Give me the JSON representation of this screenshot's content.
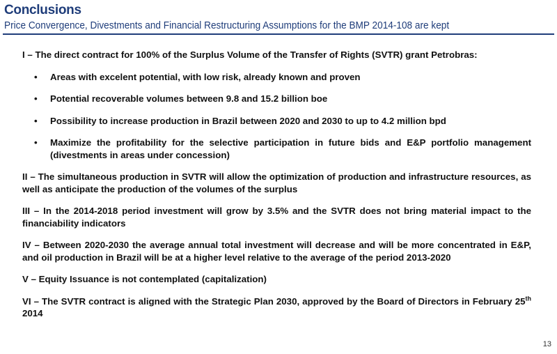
{
  "header": {
    "title": "Conclusions",
    "subtitle": "Price Convergence, Divestments and Financial Restructuring Assumptions for the BMP 2014-108 are kept"
  },
  "content": {
    "item1": {
      "text": "I – The direct  contract for 100% of the Surplus Volume of the Transfer of Rights (SVTR) grant Petrobras:",
      "bullets": [
        "Areas with excelent potential, with low risk, already known and proven",
        "Potential recoverable volumes between 9.8 and 15.2 billion boe",
        "Possibility to increase production in Brazil between 2020 and 2030 to up to 4.2 million bpd",
        "Maximize the profitability for the selective participation in future bids and E&P portfolio management (divestments in areas under concession)"
      ]
    },
    "item2": "II – The simultaneous production in SVTR will allow the optimization of production and infrastructure resources, as well as anticipate the production of the volumes of the surplus",
    "item3": "III – In the 2014-2018 period investment will grow by 3.5% and the SVTR does not bring material impact to the financiability indicators",
    "item4": "IV – Between 2020-2030 the average annual total investment will decrease and will be more concentrated in E&P, and oil production in Brazil will be at a higher level relative to the average of the period 2013-2020",
    "item5": "V – Equity Issuance is not contemplated (capitalization)",
    "item6": {
      "before": "VI – The SVTR contract is aligned with the Strategic Plan 2030, approved by the Board of Directors in February 25",
      "sup": "th",
      "after": " 2014"
    },
    "bullet_glyph": "•"
  },
  "footer": {
    "page_number": "13"
  },
  "colors": {
    "accent": "#1f3d7a",
    "text": "#111111"
  }
}
